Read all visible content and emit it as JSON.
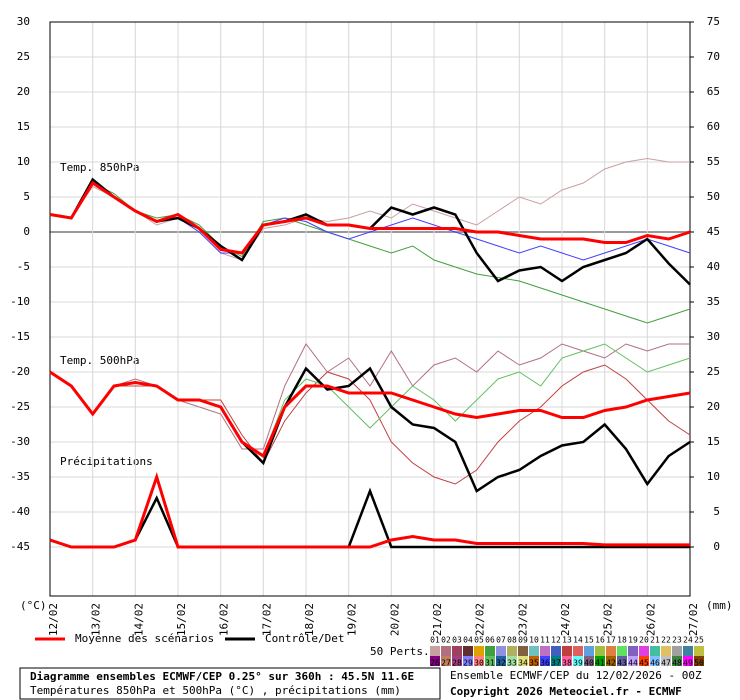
{
  "chart_data": {
    "type": "line",
    "y_label": "(°C)",
    "y2_label": "(mm)",
    "panel_labels": [
      "Temp. 850hPa",
      "Temp. 500hPa",
      "Précipitations"
    ],
    "x": [
      0,
      0.5,
      1,
      1.5,
      2,
      2.5,
      3,
      3.5,
      4,
      4.5,
      5,
      5.5,
      6,
      6.5,
      7,
      7.5,
      8,
      8.5,
      9,
      9.5,
      10,
      10.5,
      11,
      11.5,
      12,
      12.5,
      13,
      13.5,
      14,
      14.5,
      15
    ],
    "xlim": [
      0,
      15
    ],
    "xticks": [
      {
        "value": 0,
        "label": "12/02"
      },
      {
        "value": 1,
        "label": "13/02"
      },
      {
        "value": 2,
        "label": "14/02"
      },
      {
        "value": 3,
        "label": "15/02"
      },
      {
        "value": 4,
        "label": "16/02"
      },
      {
        "value": 5,
        "label": "17/02"
      },
      {
        "value": 6,
        "label": "18/02"
      },
      {
        "value": 7,
        "label": "19/02"
      },
      {
        "value": 8,
        "label": "20/02"
      },
      {
        "value": 9,
        "label": "21/02"
      },
      {
        "value": 10,
        "label": "22/02"
      },
      {
        "value": 11,
        "label": "23/02"
      },
      {
        "value": 12,
        "label": "24/02"
      },
      {
        "value": 13,
        "label": "25/02"
      },
      {
        "value": 14,
        "label": "26/02"
      },
      {
        "value": 15,
        "label": "27/02"
      }
    ],
    "ylim": [
      -52,
      30
    ],
    "yticks": [
      30,
      25,
      20,
      15,
      10,
      5,
      0,
      -5,
      -10,
      -15,
      -20,
      -25,
      -30,
      -35,
      -40,
      -45
    ],
    "y2lim": [
      -7,
      75
    ],
    "y2ticks": [
      75,
      70,
      65,
      60,
      55,
      50,
      45,
      40,
      35,
      30,
      25,
      20,
      15,
      10,
      5,
      0
    ],
    "grid": true,
    "series": [
      {
        "name": "Moyenne des scénarios",
        "color": "#ff0000",
        "t850": [
          2.5,
          2,
          7,
          5,
          3,
          1.5,
          2.5,
          0.5,
          -2.5,
          -3,
          1,
          1.5,
          2,
          1,
          1,
          0.5,
          0.5,
          0.5,
          0.5,
          0.5,
          0,
          0,
          -0.5,
          -1,
          -1,
          -1,
          -1.5,
          -1.5,
          -0.5,
          -1,
          0
        ],
        "t500": [
          -20,
          -22,
          -26,
          -22,
          -21.5,
          -22,
          -24,
          -24,
          -25,
          -30,
          -32,
          -25,
          -22,
          -22,
          -23,
          -23,
          -23,
          -24,
          -25,
          -26,
          -26.5,
          -26,
          -25.5,
          -25.5,
          -26.5,
          -26.5,
          -25.5,
          -25,
          -24,
          -23.5,
          -23
        ],
        "precip": [
          1,
          0,
          0,
          0,
          1,
          10,
          0,
          0,
          0,
          0,
          0,
          0,
          0,
          0,
          0,
          0,
          1,
          1.5,
          1,
          1,
          0.5,
          0.5,
          0.5,
          0.5,
          0.5,
          0.5,
          0.3,
          0.3,
          0.3,
          0.3,
          0.3
        ]
      },
      {
        "name": "Contrôle/Det",
        "color": "#000000",
        "t850": [
          2.5,
          2,
          7.5,
          5,
          3,
          1.5,
          2,
          0.5,
          -2,
          -4,
          1,
          1.5,
          2.5,
          1,
          1,
          0.5,
          3.5,
          2.5,
          3.5,
          2.5,
          -3,
          -7,
          -5.5,
          -5,
          -7,
          -5,
          -4,
          -3,
          -1,
          -4.5,
          -7.5
        ],
        "t500": [
          -20,
          -22,
          -26,
          -22,
          -21.5,
          -22,
          -24,
          -24,
          -25,
          -30,
          -33,
          -25,
          -19.5,
          -22.5,
          -22,
          -19.5,
          -25,
          -27.5,
          -28,
          -30,
          -37,
          -35,
          -34,
          -32,
          -30.5,
          -30,
          -27.5,
          -31,
          -36,
          -32,
          -30
        ],
        "precip": [
          1,
          0,
          0,
          0,
          1,
          7,
          0,
          0,
          0,
          0,
          0,
          0,
          0,
          0,
          0,
          8,
          0,
          0,
          0,
          0,
          0,
          0,
          0,
          0,
          0,
          0,
          0,
          0,
          0,
          0,
          0
        ]
      }
    ],
    "perturbations": {
      "label": "50 Perts.",
      "members": [
        {
          "name": "01",
          "color": "#c8a0a0",
          "t850": [
            2.5,
            2,
            6.5,
            5,
            3,
            1,
            2,
            0,
            -3,
            -4,
            0.5,
            1,
            2,
            1.5,
            2,
            3,
            2,
            4,
            3,
            2,
            1,
            3,
            5,
            4,
            6,
            7,
            9,
            10,
            10.5,
            10,
            10
          ]
        },
        {
          "name": "02",
          "color": "#b07080",
          "t500": [
            -20,
            -22,
            -26,
            -22,
            -21,
            -22,
            -24,
            -25,
            -26,
            -31,
            -31,
            -22,
            -16,
            -20,
            -18,
            -22,
            -17,
            -22,
            -19,
            -18,
            -20,
            -17,
            -19,
            -18,
            -16,
            -17,
            -18,
            -16,
            -17,
            -16,
            -16
          ]
        },
        {
          "name": "03",
          "color": "#a04060"
        },
        {
          "name": "04",
          "color": "#603030"
        },
        {
          "name": "05",
          "color": "#e0a000"
        },
        {
          "name": "06",
          "color": "#40a040",
          "t850": [
            2.5,
            2,
            7,
            5.5,
            3,
            2,
            2.5,
            1,
            -2,
            -3.5,
            1.5,
            2,
            1,
            0,
            -1,
            -2,
            -3,
            -2,
            -4,
            -5,
            -6,
            -6.5,
            -7,
            -8,
            -9,
            -10,
            -11,
            -12,
            -13,
            -12,
            -11
          ]
        },
        {
          "name": "07",
          "color": "#9090e0"
        },
        {
          "name": "08",
          "color": "#b0b060"
        },
        {
          "name": "09",
          "color": "#806040"
        },
        {
          "name": "10",
          "color": "#70c0c0"
        },
        {
          "name": "11",
          "color": "#c070c0"
        },
        {
          "name": "12",
          "color": "#4060c0"
        },
        {
          "name": "13",
          "color": "#c04040",
          "t500": [
            -20,
            -22,
            -26,
            -22,
            -22,
            -22,
            -24,
            -24,
            -24,
            -29,
            -33,
            -27,
            -23,
            -20,
            -21,
            -24,
            -30,
            -33,
            -35,
            -36,
            -34,
            -30,
            -27,
            -25,
            -22,
            -20,
            -19,
            -21,
            -24,
            -27,
            -29
          ]
        },
        {
          "name": "14",
          "color": "#e06060"
        },
        {
          "name": "15",
          "color": "#60a0e0"
        },
        {
          "name": "16",
          "color": "#a0c040"
        },
        {
          "name": "17",
          "color": "#e08040"
        },
        {
          "name": "18",
          "color": "#60e060"
        },
        {
          "name": "19",
          "color": "#8060c0"
        },
        {
          "name": "20",
          "color": "#e040e0"
        },
        {
          "name": "21",
          "color": "#40c0a0"
        },
        {
          "name": "22",
          "color": "#e0c060"
        },
        {
          "name": "23",
          "color": "#a0a0a0"
        },
        {
          "name": "24",
          "color": "#4080a0"
        },
        {
          "name": "25",
          "color": "#c0c040"
        },
        {
          "name": "26",
          "color": "#800080"
        },
        {
          "name": "27",
          "color": "#c08060"
        },
        {
          "name": "28",
          "color": "#a04080"
        },
        {
          "name": "29",
          "color": "#8080ff"
        },
        {
          "name": "30",
          "color": "#ff8080"
        },
        {
          "name": "31",
          "color": "#60c060",
          "t500": [
            -20,
            -22,
            -26,
            -22,
            -21.5,
            -22,
            -24,
            -24,
            -25,
            -30,
            -32,
            -24,
            -21,
            -22,
            -25,
            -28,
            -25,
            -22,
            -24,
            -27,
            -24,
            -21,
            -20,
            -22,
            -18,
            -17,
            -16,
            -18,
            -20,
            -19,
            -18
          ]
        },
        {
          "name": "32",
          "color": "#2060a0"
        },
        {
          "name": "33",
          "color": "#a0e0a0"
        },
        {
          "name": "34",
          "color": "#e0e080"
        },
        {
          "name": "35",
          "color": "#c06000"
        },
        {
          "name": "36",
          "color": "#4040ff",
          "t850": [
            2.5,
            2,
            7,
            5,
            3,
            1.5,
            2,
            0,
            -3,
            -3,
            1,
            2,
            1.5,
            0,
            -1,
            0,
            1,
            2,
            1,
            0,
            -1,
            -2,
            -3,
            -2,
            -3,
            -4,
            -3,
            -2,
            -1,
            -2,
            -3
          ]
        },
        {
          "name": "37",
          "color": "#008080"
        },
        {
          "name": "38",
          "color": "#ff60a0"
        },
        {
          "name": "39",
          "color": "#60ffff"
        },
        {
          "name": "40",
          "color": "#806080"
        },
        {
          "name": "41",
          "color": "#00a000"
        },
        {
          "name": "42",
          "color": "#a06000"
        },
        {
          "name": "43",
          "color": "#6060a0"
        },
        {
          "name": "44",
          "color": "#c0a0ff"
        },
        {
          "name": "45",
          "color": "#ff4000"
        },
        {
          "name": "46",
          "color": "#80c0ff"
        },
        {
          "name": "47",
          "color": "#c0c0c0"
        },
        {
          "name": "48",
          "color": "#408040"
        },
        {
          "name": "49",
          "color": "#ff00ff"
        },
        {
          "name": "50",
          "color": "#804000"
        }
      ]
    },
    "title": "Diagramme ensembles ECMWF/CEP 0.25° sur 360h : 45.5N 11.6E",
    "subtitle": "Températures 850hPa et 500hPa (°C) , précipitations (mm)",
    "run": "Ensemble ECMWF/CEP du 12/02/2026 - 00Z",
    "copyright": "Copyright 2026 Meteociel.fr - ECMWF"
  }
}
